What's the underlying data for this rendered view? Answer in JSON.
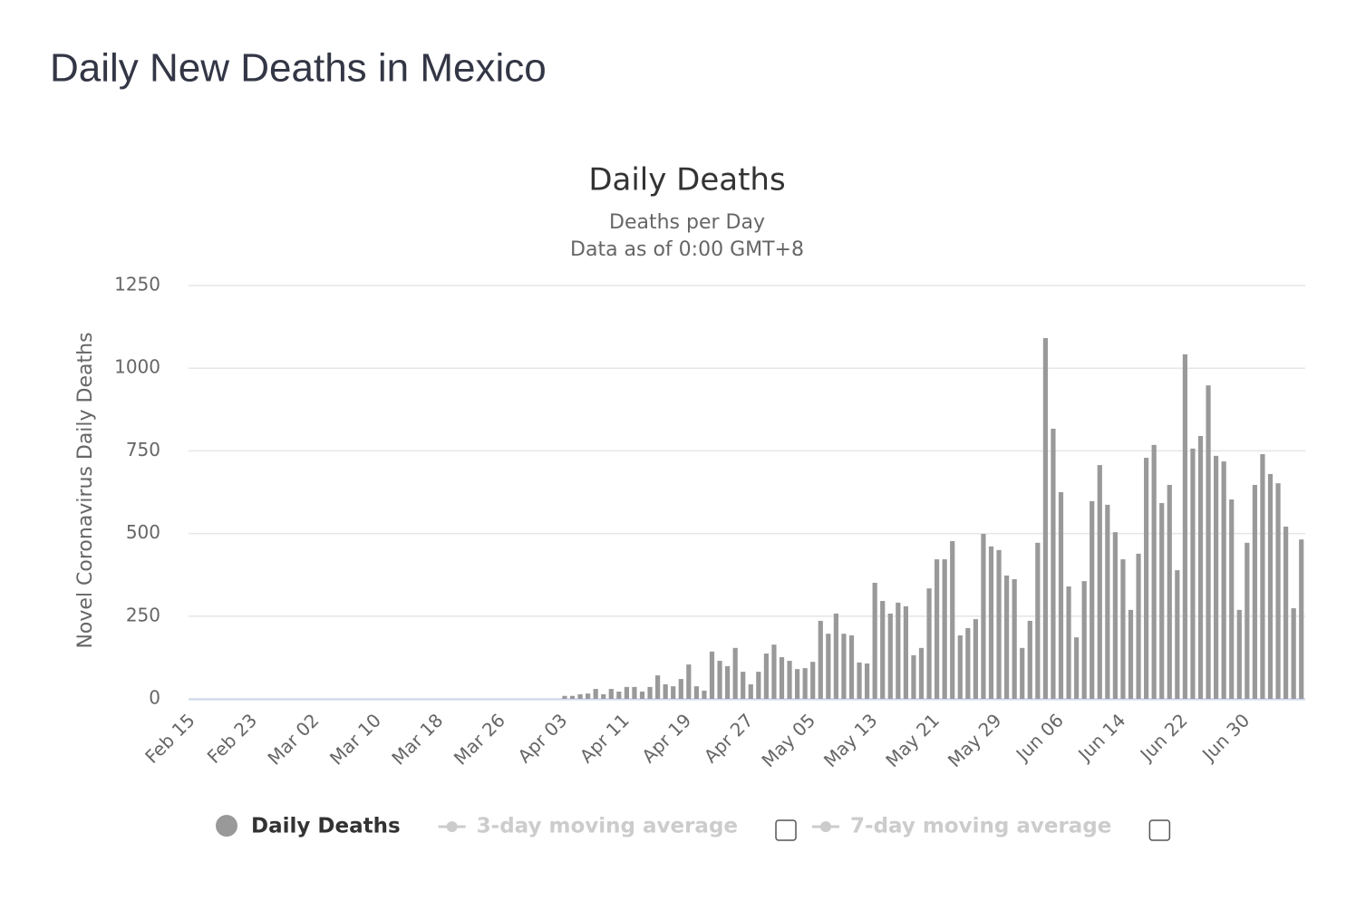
{
  "page_title": "Daily New Deaths in Mexico",
  "chart_data": {
    "type": "bar",
    "title": "Daily Deaths",
    "subtitle": [
      "Deaths per Day",
      "Data as of 0:00 GMT+8"
    ],
    "y_label": "Novel Coronavirus Daily Deaths",
    "categories": [
      "Feb 15",
      null,
      null,
      null,
      null,
      null,
      null,
      null,
      "Feb 23",
      null,
      null,
      null,
      null,
      null,
      null,
      null,
      "Mar 02",
      null,
      null,
      null,
      null,
      null,
      null,
      null,
      "Mar 10",
      null,
      null,
      null,
      null,
      null,
      null,
      null,
      "Mar 18",
      null,
      null,
      null,
      null,
      null,
      null,
      null,
      "Mar 26",
      null,
      null,
      null,
      null,
      null,
      null,
      null,
      "Apr 03",
      null,
      null,
      null,
      null,
      null,
      null,
      null,
      "Apr 11",
      null,
      null,
      null,
      null,
      null,
      null,
      null,
      "Apr 19",
      null,
      null,
      null,
      null,
      null,
      null,
      null,
      "Apr 27",
      null,
      null,
      null,
      null,
      null,
      null,
      null,
      "May 05",
      null,
      null,
      null,
      null,
      null,
      null,
      null,
      "May 13",
      null,
      null,
      null,
      null,
      null,
      null,
      null,
      "May 21",
      null,
      null,
      null,
      null,
      null,
      null,
      null,
      "May 29",
      null,
      null,
      null,
      null,
      null,
      null,
      null,
      "Jun 06",
      null,
      null,
      null,
      null,
      null,
      null,
      null,
      "Jun 14",
      null,
      null,
      null,
      null,
      null,
      null,
      null,
      "Jun 22",
      null,
      null,
      null,
      null,
      null,
      null,
      null,
      "Jun 30",
      null,
      null,
      null,
      null,
      null,
      null,
      null
    ],
    "series": [
      {
        "name": "Daily Deaths",
        "color": "#999999",
        "values": [
          0,
          0,
          0,
          0,
          0,
          0,
          0,
          0,
          0,
          0,
          0,
          0,
          0,
          0,
          0,
          0,
          0,
          0,
          0,
          0,
          0,
          0,
          0,
          0,
          0,
          0,
          0,
          0,
          0,
          0,
          0,
          0,
          0,
          0,
          0,
          0,
          0,
          0,
          0,
          0,
          0,
          0,
          0,
          0,
          0,
          0,
          0,
          0,
          9,
          9,
          14,
          16,
          30,
          14,
          30,
          22,
          36,
          36,
          22,
          36,
          71,
          44,
          38,
          60,
          104,
          38,
          25,
          143,
          115,
          99,
          154,
          82,
          44,
          82,
          137,
          164,
          126,
          115,
          90,
          93,
          112,
          236,
          197,
          258,
          197,
          192,
          110,
          107,
          351,
          296,
          258,
          291,
          280,
          132,
          154,
          334,
          422,
          422,
          477,
          192,
          214,
          241,
          499,
          461,
          450,
          373,
          362,
          154,
          236,
          472,
          1091,
          817,
          625,
          340,
          186,
          356,
          598,
          707,
          587,
          504,
          422,
          269,
          439,
          729,
          768,
          592,
          647,
          389,
          1042,
          757,
          795,
          948,
          735,
          718,
          603,
          269,
          472,
          647,
          740,
          680,
          652,
          521,
          274,
          482
        ]
      }
    ],
    "hidden_series": [
      {
        "name": "3-day moving average",
        "color": "#cccccc"
      },
      {
        "name": "7-day moving average",
        "color": "#cccccc"
      }
    ],
    "ylim": [
      0,
      1250
    ],
    "yticks": [
      0,
      250,
      500,
      750,
      1000,
      1250
    ],
    "grid": true
  }
}
